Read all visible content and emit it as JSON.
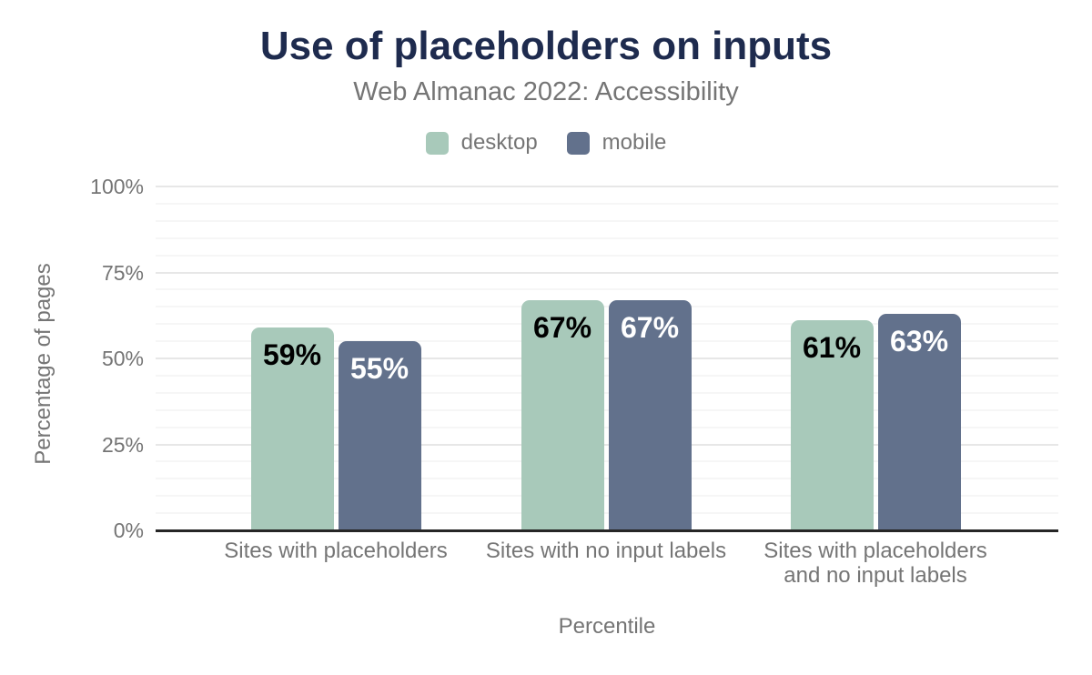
{
  "header": {
    "title": "Use of placeholders on inputs",
    "subtitle": "Web Almanac 2022: Accessibility"
  },
  "colors": {
    "title_text": "#1e2b4e",
    "muted_text": "#757575",
    "axis_line": "#262626",
    "grid_major": "#e7e7e7",
    "grid_minor": "#f6f6f6",
    "desktop": "#a8c9ba",
    "mobile": "#62718c",
    "desktop_value_label": "#000000",
    "mobile_value_label": "#ffffff"
  },
  "chart_data": {
    "type": "bar",
    "title": "Use of placeholders on inputs",
    "subtitle": "Web Almanac 2022: Accessibility",
    "xlabel": "Percentile",
    "ylabel": "Percentage of pages",
    "ylim": [
      0,
      100
    ],
    "yticks": [
      {
        "value": 0,
        "label": "0%"
      },
      {
        "value": 25,
        "label": "25%"
      },
      {
        "value": 50,
        "label": "50%"
      },
      {
        "value": 75,
        "label": "75%"
      },
      {
        "value": 100,
        "label": "100%"
      }
    ],
    "grid": {
      "minor_step": 5,
      "major_step": 25
    },
    "legend_position": "top",
    "categories": [
      "Sites with placeholders",
      "Sites with no input labels",
      "Sites with placeholders and no input labels"
    ],
    "category_label_lines": [
      [
        "Sites with placeholders"
      ],
      [
        "Sites with no input labels"
      ],
      [
        "Sites with placeholders",
        "and no input labels"
      ]
    ],
    "series": [
      {
        "name": "desktop",
        "color": "#a8c9ba",
        "label_color": "#000000",
        "values": [
          59,
          67,
          61
        ],
        "labels": [
          "59%",
          "67%",
          "61%"
        ]
      },
      {
        "name": "mobile",
        "color": "#62718c",
        "label_color": "#ffffff",
        "values": [
          55,
          67,
          63
        ],
        "labels": [
          "55%",
          "67%",
          "63%"
        ]
      }
    ]
  }
}
